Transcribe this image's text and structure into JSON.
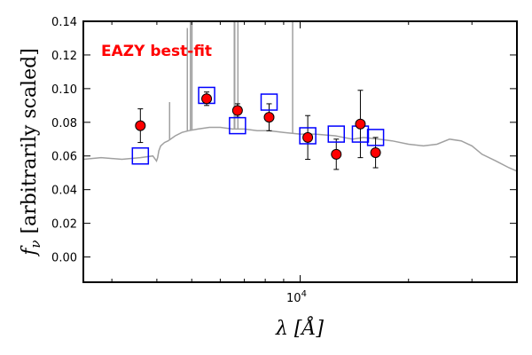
{
  "chart_data": {
    "type": "scatter",
    "title": "",
    "xlabel": "λ [Å]",
    "ylabel": "f_ν [arbitrarily scaled]",
    "xscale": "log",
    "xlim": [
      2500,
      40000
    ],
    "ylim": [
      -0.015,
      0.14
    ],
    "grid": false,
    "legend": "none",
    "yticks": [
      0.0,
      0.02,
      0.04,
      0.06,
      0.08,
      0.1,
      0.12,
      0.14
    ],
    "ytick_labels": [
      "0.00",
      "0.02",
      "0.04",
      "0.06",
      "0.08",
      "0.10",
      "0.12",
      "0.14"
    ],
    "xticks": [
      10000
    ],
    "xtick_labels": [
      "10^4"
    ],
    "annotation": {
      "text": "EAZY best-fit",
      "color": "#ff0000"
    },
    "series": [
      {
        "kind": "template",
        "color": "#a0a0a0",
        "x": [
          2500,
          2800,
          3200,
          3600,
          3900,
          3990,
          4020,
          4050,
          4100,
          4200,
          4300,
          4500,
          4700,
          4900,
          5200,
          5600,
          6000,
          6500,
          7000,
          7600,
          8200,
          9000,
          10000,
          11000,
          12500,
          14000,
          15000,
          16500,
          18000,
          20000,
          22000,
          24000,
          26000,
          28000,
          30000,
          32000,
          35000,
          38000,
          40000
        ],
        "y": [
          0.058,
          0.059,
          0.058,
          0.059,
          0.06,
          0.057,
          0.059,
          0.063,
          0.066,
          0.068,
          0.069,
          0.072,
          0.074,
          0.075,
          0.076,
          0.077,
          0.077,
          0.076,
          0.076,
          0.075,
          0.075,
          0.074,
          0.073,
          0.073,
          0.072,
          0.07,
          0.071,
          0.07,
          0.069,
          0.067,
          0.066,
          0.067,
          0.07,
          0.069,
          0.066,
          0.061,
          0.057,
          0.053,
          0.051
        ]
      },
      {
        "kind": "emission_lines",
        "color": "#a0a0a0",
        "x": [
          4340,
          4861,
          4959,
          5007,
          6563,
          6583,
          6717,
          9532
        ],
        "peak": [
          0.092,
          0.136,
          0.14,
          0.14,
          0.14,
          0.14,
          0.14,
          0.14
        ]
      },
      {
        "kind": "model_photometry",
        "marker": "square",
        "color": "#0000ff",
        "x": [
          3600,
          5500,
          6700,
          8200,
          10500,
          12600,
          14700,
          16200
        ],
        "y": [
          0.06,
          0.096,
          0.078,
          0.092,
          0.072,
          0.073,
          0.073,
          0.071
        ]
      },
      {
        "kind": "observed_photometry",
        "marker": "circle",
        "color": "#ff0000",
        "x": [
          3600,
          5500,
          6700,
          8200,
          10500,
          12600,
          14700,
          16200
        ],
        "y": [
          0.078,
          0.094,
          0.087,
          0.083,
          0.071,
          0.061,
          0.079,
          0.062
        ],
        "yerr": [
          0.01,
          0.004,
          0.004,
          0.008,
          0.013,
          0.009,
          0.02,
          0.009
        ]
      }
    ]
  }
}
